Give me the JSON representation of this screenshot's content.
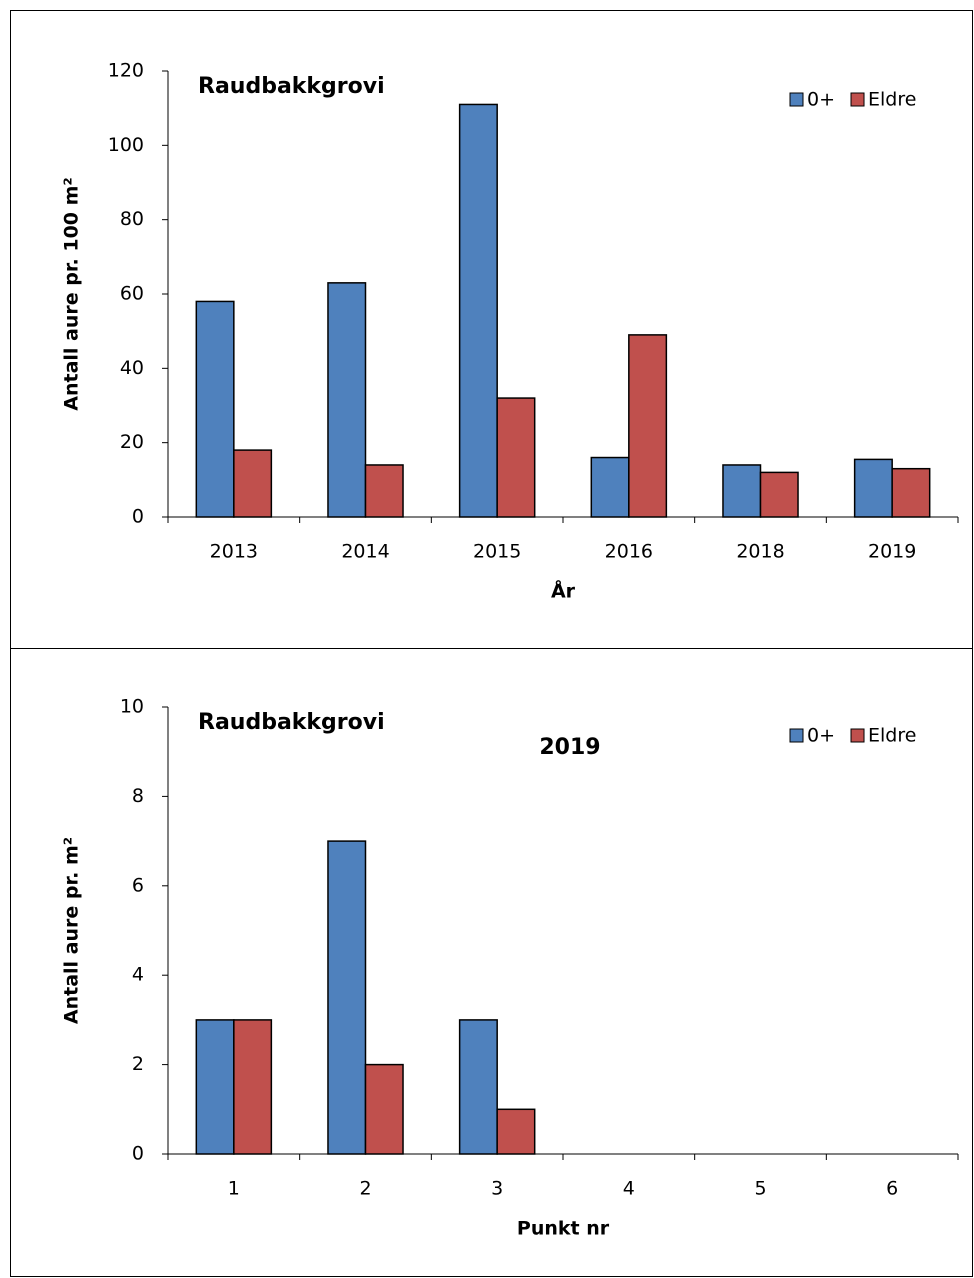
{
  "chart_data": [
    {
      "type": "bar",
      "title": "Raudbakkgrovi",
      "x_label": "År",
      "y_label": "Antall aure pr. 100 m²",
      "categories": [
        "2013",
        "2014",
        "2015",
        "2016",
        "2018",
        "2019"
      ],
      "series": [
        {
          "name": "0+",
          "color": "#4f81bd",
          "values": [
            58,
            63,
            111,
            16,
            14,
            15.5
          ]
        },
        {
          "name": "Eldre",
          "color": "#c0504d",
          "values": [
            18,
            14,
            32,
            49,
            12,
            13
          ]
        }
      ],
      "ylim": [
        0,
        120
      ],
      "yticks": [
        0,
        20,
        40,
        60,
        80,
        100,
        120
      ],
      "grid": false,
      "legend": "top-right"
    },
    {
      "type": "bar",
      "title": "Raudbakkgrovi",
      "subtitle": "2019",
      "x_label": "Punkt nr",
      "y_label": "Antall aure pr. m²",
      "categories": [
        "1",
        "2",
        "3",
        "4",
        "5",
        "6"
      ],
      "series": [
        {
          "name": "0+",
          "color": "#4f81bd",
          "values": [
            3,
            7,
            3,
            0,
            0,
            0
          ]
        },
        {
          "name": "Eldre",
          "color": "#c0504d",
          "values": [
            3,
            2,
            1,
            0,
            0,
            0
          ]
        }
      ],
      "ylim": [
        0,
        10
      ],
      "yticks": [
        0,
        2,
        4,
        6,
        8,
        10
      ],
      "grid": false,
      "legend": "top-right"
    }
  ]
}
